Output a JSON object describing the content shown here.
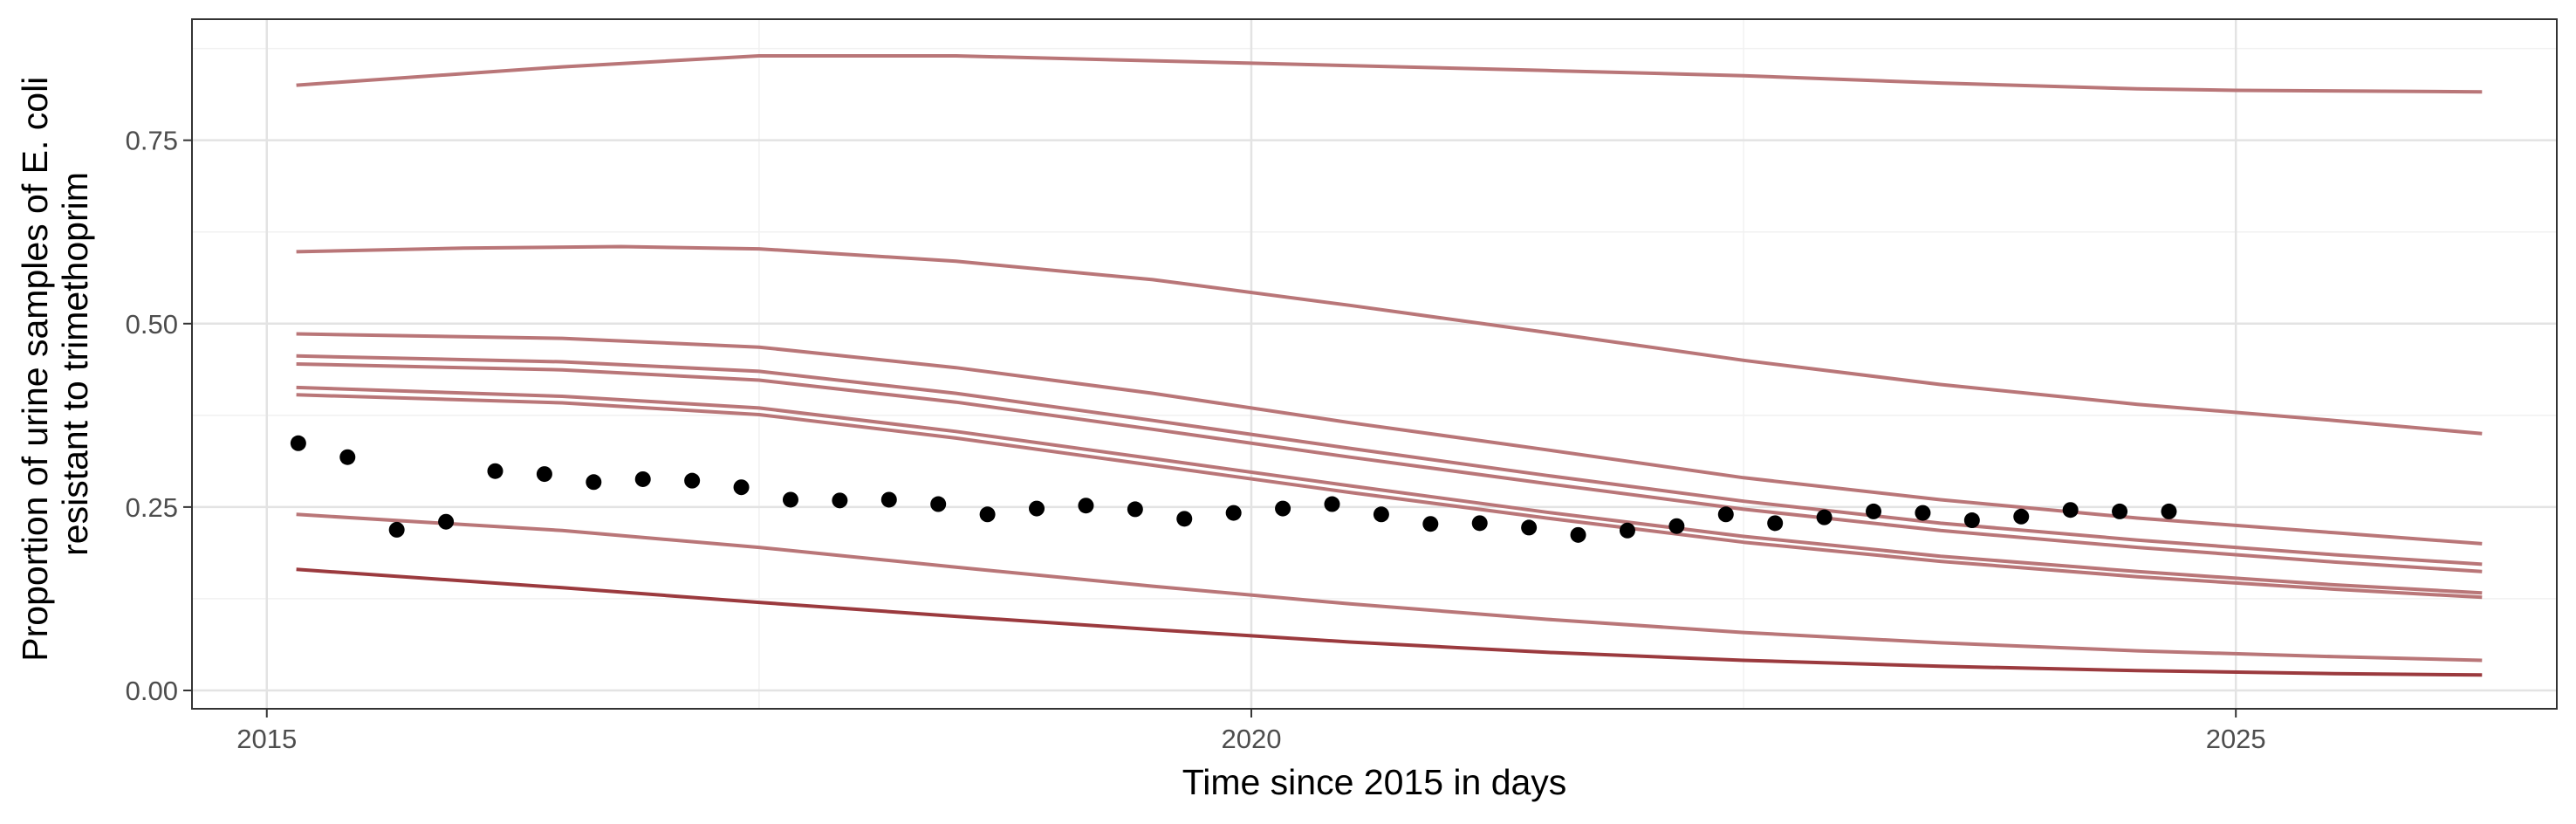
{
  "chart_data": {
    "type": "line",
    "title": "",
    "xlabel": "Time since 2015 in days",
    "ylabel_lines": [
      "Proportion of urine samples of E. coli",
      "resistant to trimethoprim"
    ],
    "xlim": [
      2014.62,
      2026.63
    ],
    "ylim": [
      -0.025,
      0.915
    ],
    "x_ticks": [
      2015,
      2020,
      2025
    ],
    "x_tick_labels": [
      "2015",
      "2020",
      "2025"
    ],
    "y_ticks": [
      0.0,
      0.25,
      0.5,
      0.75
    ],
    "y_tick_labels": [
      "0.00",
      "0.25",
      "0.50",
      "0.75"
    ],
    "grid": true,
    "legend": "none",
    "colors": {
      "series_line": "#b97678",
      "highlight_line": "#9b3a3e",
      "points": "#000000",
      "panel_border": "#333333",
      "grid_major": "#e3e3e3",
      "grid_minor": "#f1f1f1"
    },
    "series": [
      {
        "x": [
          2015.15,
          2016.5,
          2017.5,
          2018.5,
          2020.0,
          2021.5,
          2022.5,
          2023.5,
          2024.5,
          2025.0,
          2026.25
        ],
        "y": [
          0.825,
          0.85,
          0.865,
          0.865,
          0.855,
          0.845,
          0.838,
          0.828,
          0.82,
          0.818,
          0.816
        ]
      },
      {
        "x": [
          2015.15,
          2016.0,
          2016.8,
          2017.5,
          2018.5,
          2019.5,
          2020.5,
          2021.5,
          2022.5,
          2023.5,
          2024.5,
          2025.5,
          2026.25
        ],
        "y": [
          0.598,
          0.603,
          0.605,
          0.602,
          0.585,
          0.56,
          0.525,
          0.488,
          0.45,
          0.417,
          0.39,
          0.368,
          0.35
        ]
      },
      {
        "x": [
          2015.15,
          2016.5,
          2017.5,
          2018.5,
          2019.5,
          2020.5,
          2021.5,
          2022.5,
          2023.5,
          2024.5,
          2025.5,
          2026.25
        ],
        "y": [
          0.486,
          0.48,
          0.468,
          0.44,
          0.405,
          0.365,
          0.328,
          0.29,
          0.26,
          0.235,
          0.215,
          0.2
        ]
      },
      {
        "x": [
          2015.15,
          2016.5,
          2017.5,
          2018.5,
          2019.5,
          2020.5,
          2021.5,
          2022.5,
          2023.5,
          2024.5,
          2025.5,
          2026.25
        ],
        "y": [
          0.456,
          0.448,
          0.435,
          0.405,
          0.368,
          0.33,
          0.293,
          0.258,
          0.228,
          0.205,
          0.185,
          0.172
        ]
      },
      {
        "x": [
          2015.15,
          2016.5,
          2017.5,
          2018.5,
          2019.5,
          2020.5,
          2021.5,
          2022.5,
          2023.5,
          2024.5,
          2025.5,
          2026.25
        ],
        "y": [
          0.445,
          0.437,
          0.423,
          0.393,
          0.356,
          0.318,
          0.282,
          0.247,
          0.218,
          0.195,
          0.175,
          0.162
        ]
      },
      {
        "x": [
          2015.15,
          2016.5,
          2017.5,
          2018.5,
          2019.5,
          2020.5,
          2021.5,
          2022.5,
          2023.5,
          2024.5,
          2025.5,
          2026.25
        ],
        "y": [
          0.413,
          0.401,
          0.385,
          0.353,
          0.316,
          0.279,
          0.243,
          0.21,
          0.183,
          0.162,
          0.144,
          0.133
        ]
      },
      {
        "x": [
          2015.15,
          2016.5,
          2017.5,
          2018.5,
          2019.5,
          2020.5,
          2021.5,
          2022.5,
          2023.5,
          2024.5,
          2025.5,
          2026.25
        ],
        "y": [
          0.403,
          0.392,
          0.376,
          0.344,
          0.307,
          0.27,
          0.235,
          0.202,
          0.176,
          0.155,
          0.138,
          0.127
        ]
      },
      {
        "x": [
          2015.15,
          2016.5,
          2017.5,
          2018.5,
          2019.5,
          2020.5,
          2021.5,
          2022.5,
          2023.5,
          2024.5,
          2025.5,
          2026.25
        ],
        "y": [
          0.24,
          0.218,
          0.195,
          0.168,
          0.142,
          0.118,
          0.097,
          0.079,
          0.065,
          0.054,
          0.046,
          0.041
        ]
      },
      {
        "highlight": true,
        "x": [
          2015.15,
          2016.5,
          2017.5,
          2018.5,
          2019.5,
          2020.5,
          2021.5,
          2022.5,
          2023.5,
          2024.5,
          2025.5,
          2026.25
        ],
        "y": [
          0.165,
          0.14,
          0.12,
          0.101,
          0.083,
          0.066,
          0.052,
          0.041,
          0.033,
          0.027,
          0.023,
          0.021
        ]
      }
    ],
    "points": {
      "x": [
        2015.16,
        2015.41,
        2015.66,
        2015.91,
        2016.16,
        2016.41,
        2016.66,
        2016.91,
        2017.16,
        2017.41,
        2017.66,
        2017.91,
        2018.16,
        2018.41,
        2018.66,
        2018.91,
        2019.16,
        2019.41,
        2019.66,
        2019.91,
        2020.16,
        2020.41,
        2020.66,
        2020.91,
        2021.16,
        2021.41,
        2021.66,
        2021.91,
        2022.16,
        2022.41,
        2022.66,
        2022.91,
        2023.16,
        2023.41,
        2023.66,
        2023.91,
        2024.16,
        2024.41,
        2024.66
      ],
      "y": [
        0.337,
        0.318,
        0.219,
        0.23,
        0.299,
        0.295,
        0.284,
        0.288,
        0.286,
        0.277,
        0.26,
        0.259,
        0.26,
        0.254,
        0.24,
        0.248,
        0.252,
        0.247,
        0.234,
        0.242,
        0.248,
        0.254,
        0.24,
        0.227,
        0.228,
        0.222,
        0.212,
        0.218,
        0.224,
        0.24,
        0.228,
        0.236,
        0.244,
        0.242,
        0.232,
        0.237,
        0.246,
        0.244,
        0.244
      ]
    }
  }
}
